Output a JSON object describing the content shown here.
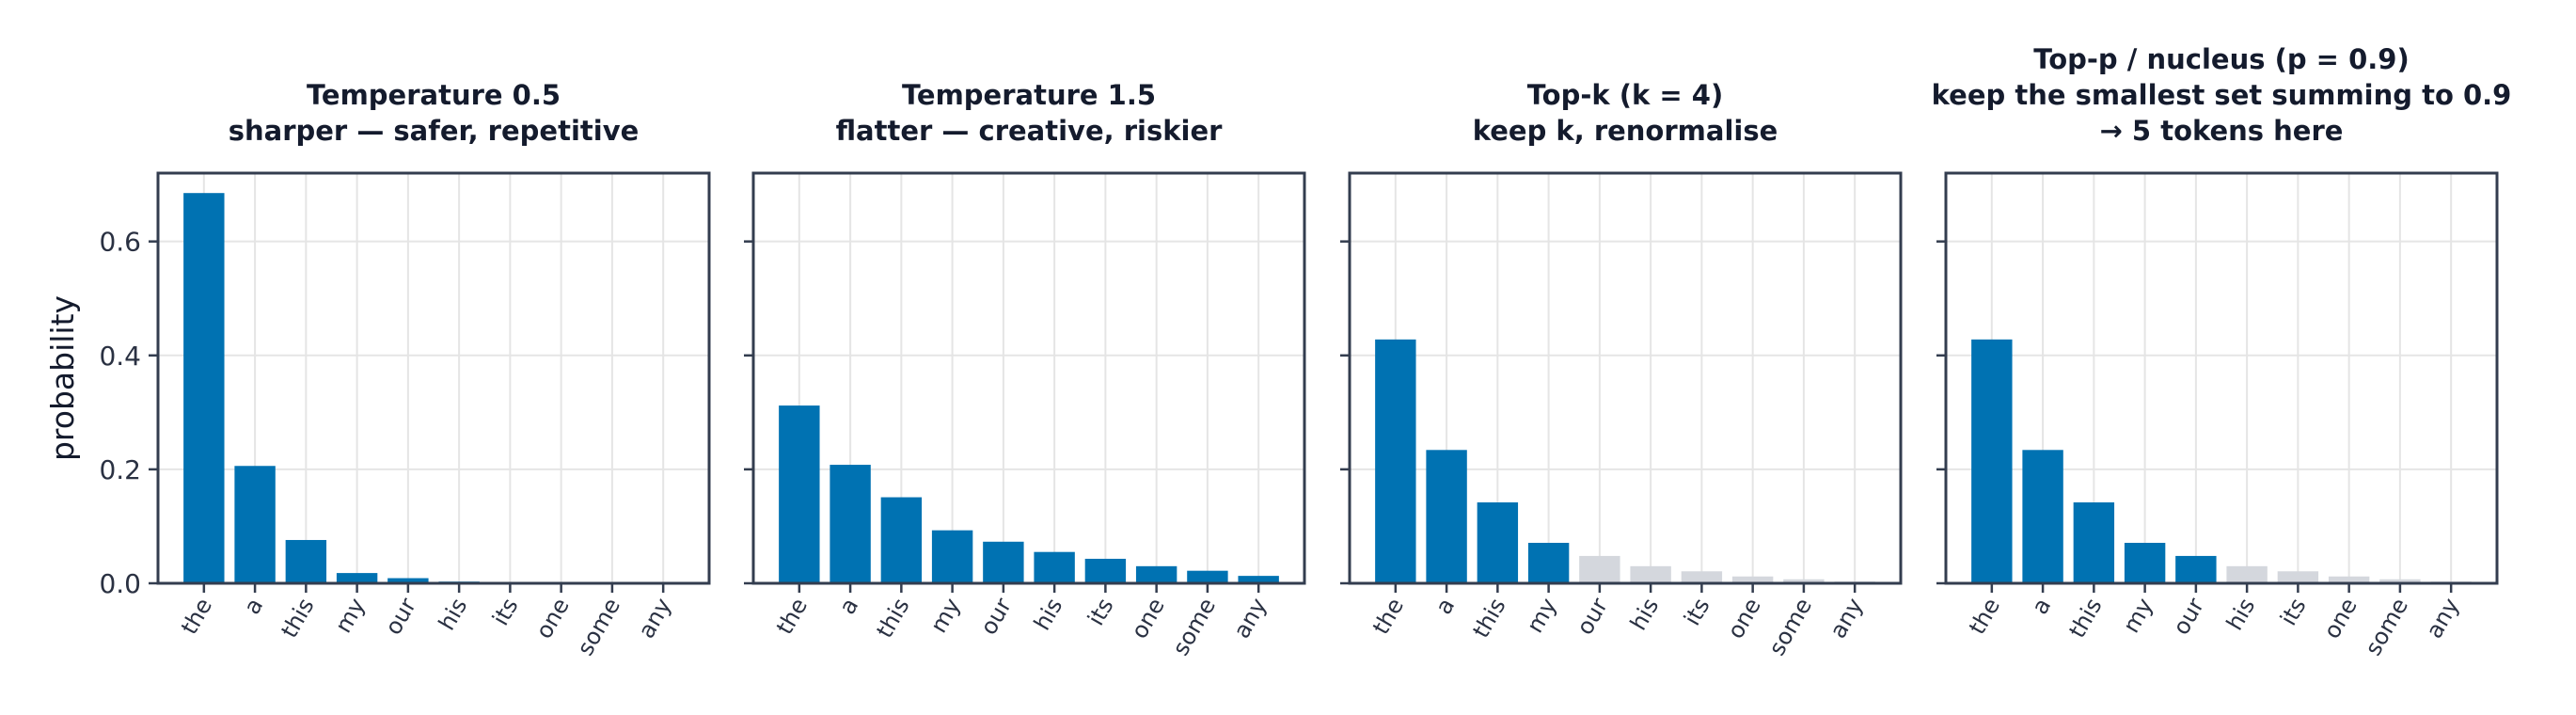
{
  "colors": {
    "kept": "#0072b2",
    "dropped": "#d4d7dd",
    "frame": "#333d4f",
    "grid": "#e5e5e5"
  },
  "chart_data": [
    {
      "type": "bar",
      "title_lines": [
        "Temperature 0.5",
        "sharper — safer, repetitive"
      ],
      "categories": [
        "the",
        "a",
        "this",
        "my",
        "our",
        "his",
        "its",
        "one",
        "some",
        "any"
      ],
      "values": [
        0.685,
        0.206,
        0.076,
        0.018,
        0.009,
        0.003,
        0.002,
        0.001,
        0.0005,
        0.0003
      ],
      "kept": [
        true,
        true,
        true,
        true,
        true,
        true,
        true,
        true,
        true,
        true
      ],
      "xlabel": "",
      "ylabel": "probability",
      "ylim": [
        0,
        0.72
      ],
      "yticks": [
        "0.0",
        "0.2",
        "0.4",
        "0.6"
      ],
      "grid": true
    },
    {
      "type": "bar",
      "title_lines": [
        "Temperature 1.5",
        "flatter — creative, riskier"
      ],
      "categories": [
        "the",
        "a",
        "this",
        "my",
        "our",
        "his",
        "its",
        "one",
        "some",
        "any"
      ],
      "values": [
        0.312,
        0.208,
        0.151,
        0.093,
        0.073,
        0.055,
        0.043,
        0.03,
        0.022,
        0.013
      ],
      "kept": [
        true,
        true,
        true,
        true,
        true,
        true,
        true,
        true,
        true,
        true
      ],
      "xlabel": "",
      "ylabel": "",
      "ylim": [
        0,
        0.72
      ],
      "grid": true
    },
    {
      "type": "bar",
      "title_lines": [
        "Top-k (k = 4)",
        "keep k, renormalise"
      ],
      "categories": [
        "the",
        "a",
        "this",
        "my",
        "our",
        "his",
        "its",
        "one",
        "some",
        "any"
      ],
      "values": [
        0.428,
        0.234,
        0.142,
        0.071,
        0.048,
        0.03,
        0.021,
        0.012,
        0.007,
        0.003
      ],
      "kept": [
        true,
        true,
        true,
        true,
        false,
        false,
        false,
        false,
        false,
        false
      ],
      "xlabel": "",
      "ylabel": "",
      "ylim": [
        0,
        0.72
      ],
      "grid": true
    },
    {
      "type": "bar",
      "title_lines": [
        "Top-p / nucleus (p = 0.9)",
        "keep the smallest set summing to 0.9",
        "→ 5 tokens here"
      ],
      "categories": [
        "the",
        "a",
        "this",
        "my",
        "our",
        "his",
        "its",
        "one",
        "some",
        "any"
      ],
      "values": [
        0.428,
        0.234,
        0.142,
        0.071,
        0.048,
        0.03,
        0.021,
        0.012,
        0.007,
        0.003
      ],
      "kept": [
        true,
        true,
        true,
        true,
        true,
        false,
        false,
        false,
        false,
        false
      ],
      "xlabel": "",
      "ylabel": "",
      "ylim": [
        0,
        0.72
      ],
      "grid": true
    }
  ]
}
